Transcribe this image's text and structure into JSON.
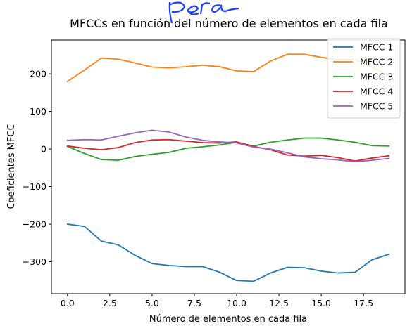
{
  "handwriting": {
    "text": "Pera",
    "color": "#1f3fff"
  },
  "chart_data": {
    "type": "line",
    "title": "MFCCs en función del número de elementos en cada fila",
    "xlabel": "Número de elementos en cada fila",
    "ylabel": "Coeficientes MFCC",
    "xlim": [
      -0.95,
      19.95
    ],
    "ylim": [
      -385,
      290
    ],
    "xticks": [
      0.0,
      2.5,
      5.0,
      7.5,
      10.0,
      12.5,
      15.0,
      17.5
    ],
    "xtick_labels": [
      "0.0",
      "2.5",
      "5.0",
      "7.5",
      "10.0",
      "12.5",
      "15.0",
      "17.5"
    ],
    "yticks": [
      -300,
      -200,
      -100,
      0,
      100,
      200
    ],
    "ytick_labels": [
      "−300",
      "−200",
      "−100",
      "0",
      "100",
      "200"
    ],
    "grid": false,
    "legend_position": "top-right",
    "x": [
      0,
      1,
      2,
      3,
      4,
      5,
      6,
      7,
      8,
      9,
      10,
      11,
      12,
      13,
      14,
      15,
      16,
      17,
      18,
      19
    ],
    "series": [
      {
        "name": "MFCC 1",
        "color": "#1f77b4",
        "values": [
          -200,
          -206,
          -245,
          -255,
          -283,
          -305,
          -310,
          -313,
          -313,
          -328,
          -350,
          -352,
          -330,
          -315,
          -316,
          -325,
          -330,
          -328,
          -295,
          -280
        ]
      },
      {
        "name": "MFCC 2",
        "color": "#ff7f0e",
        "values": [
          180,
          210,
          242,
          239,
          229,
          218,
          216,
          219,
          223,
          219,
          208,
          206,
          234,
          252,
          252,
          244,
          238,
          238,
          218,
          195
        ]
      },
      {
        "name": "MFCC 3",
        "color": "#2ca02c",
        "values": [
          7,
          -12,
          -28,
          -30,
          -20,
          -14,
          -9,
          2,
          6,
          11,
          18,
          8,
          18,
          24,
          29,
          29,
          24,
          18,
          9,
          8
        ]
      },
      {
        "name": "MFCC 4",
        "color": "#d62728",
        "values": [
          8,
          2,
          -2,
          4,
          17,
          24,
          25,
          21,
          17,
          16,
          19,
          7,
          -2,
          -16,
          -19,
          -17,
          -23,
          -32,
          -24,
          -18
        ]
      },
      {
        "name": "MFCC 5",
        "color": "#9467bd",
        "values": [
          23,
          25,
          24,
          34,
          43,
          50,
          45,
          32,
          23,
          19,
          16,
          5,
          0,
          -10,
          -21,
          -26,
          -29,
          -34,
          -30,
          -25
        ]
      }
    ]
  }
}
